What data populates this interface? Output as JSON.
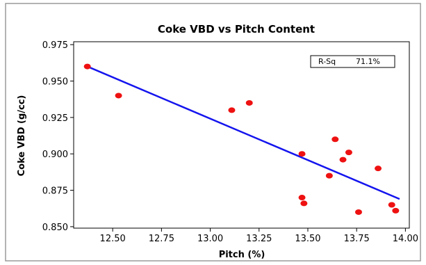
{
  "chart_data": {
    "type": "scatter",
    "title": "Coke VBD vs Pitch Content",
    "xlabel": "Pitch (%)",
    "ylabel": "Coke VBD (g/cc)",
    "xlim": [
      12.3,
      14.02
    ],
    "ylim": [
      0.849,
      0.977
    ],
    "xticks": [
      12.5,
      12.75,
      13.0,
      13.25,
      13.5,
      13.75,
      14.0
    ],
    "xtick_labels": [
      "12.50",
      "12.75",
      "13.00",
      "13.25",
      "13.50",
      "13.75",
      "14.00"
    ],
    "yticks": [
      0.85,
      0.875,
      0.9,
      0.925,
      0.95,
      0.975
    ],
    "ytick_labels": [
      "0.850",
      "0.875",
      "0.900",
      "0.925",
      "0.950",
      "0.975"
    ],
    "points": [
      {
        "x": 12.37,
        "y": 0.96
      },
      {
        "x": 12.53,
        "y": 0.94
      },
      {
        "x": 13.11,
        "y": 0.93
      },
      {
        "x": 13.2,
        "y": 0.935
      },
      {
        "x": 13.47,
        "y": 0.9
      },
      {
        "x": 13.47,
        "y": 0.87
      },
      {
        "x": 13.48,
        "y": 0.866
      },
      {
        "x": 13.61,
        "y": 0.885
      },
      {
        "x": 13.64,
        "y": 0.91
      },
      {
        "x": 13.68,
        "y": 0.896
      },
      {
        "x": 13.71,
        "y": 0.901
      },
      {
        "x": 13.76,
        "y": 0.86
      },
      {
        "x": 13.86,
        "y": 0.89
      },
      {
        "x": 13.93,
        "y": 0.865
      },
      {
        "x": 13.95,
        "y": 0.861
      }
    ],
    "fit_line": {
      "x": [
        12.37,
        13.97
      ],
      "y": [
        0.96,
        0.869
      ]
    },
    "legend": {
      "label": "R-Sq",
      "value": "71.1%",
      "placement": "top-right"
    },
    "grid": false,
    "colors": {
      "points": "#ee1111",
      "fit_line": "#1414ee",
      "background": "#ffffff",
      "frame": "#9a9a9a"
    }
  }
}
